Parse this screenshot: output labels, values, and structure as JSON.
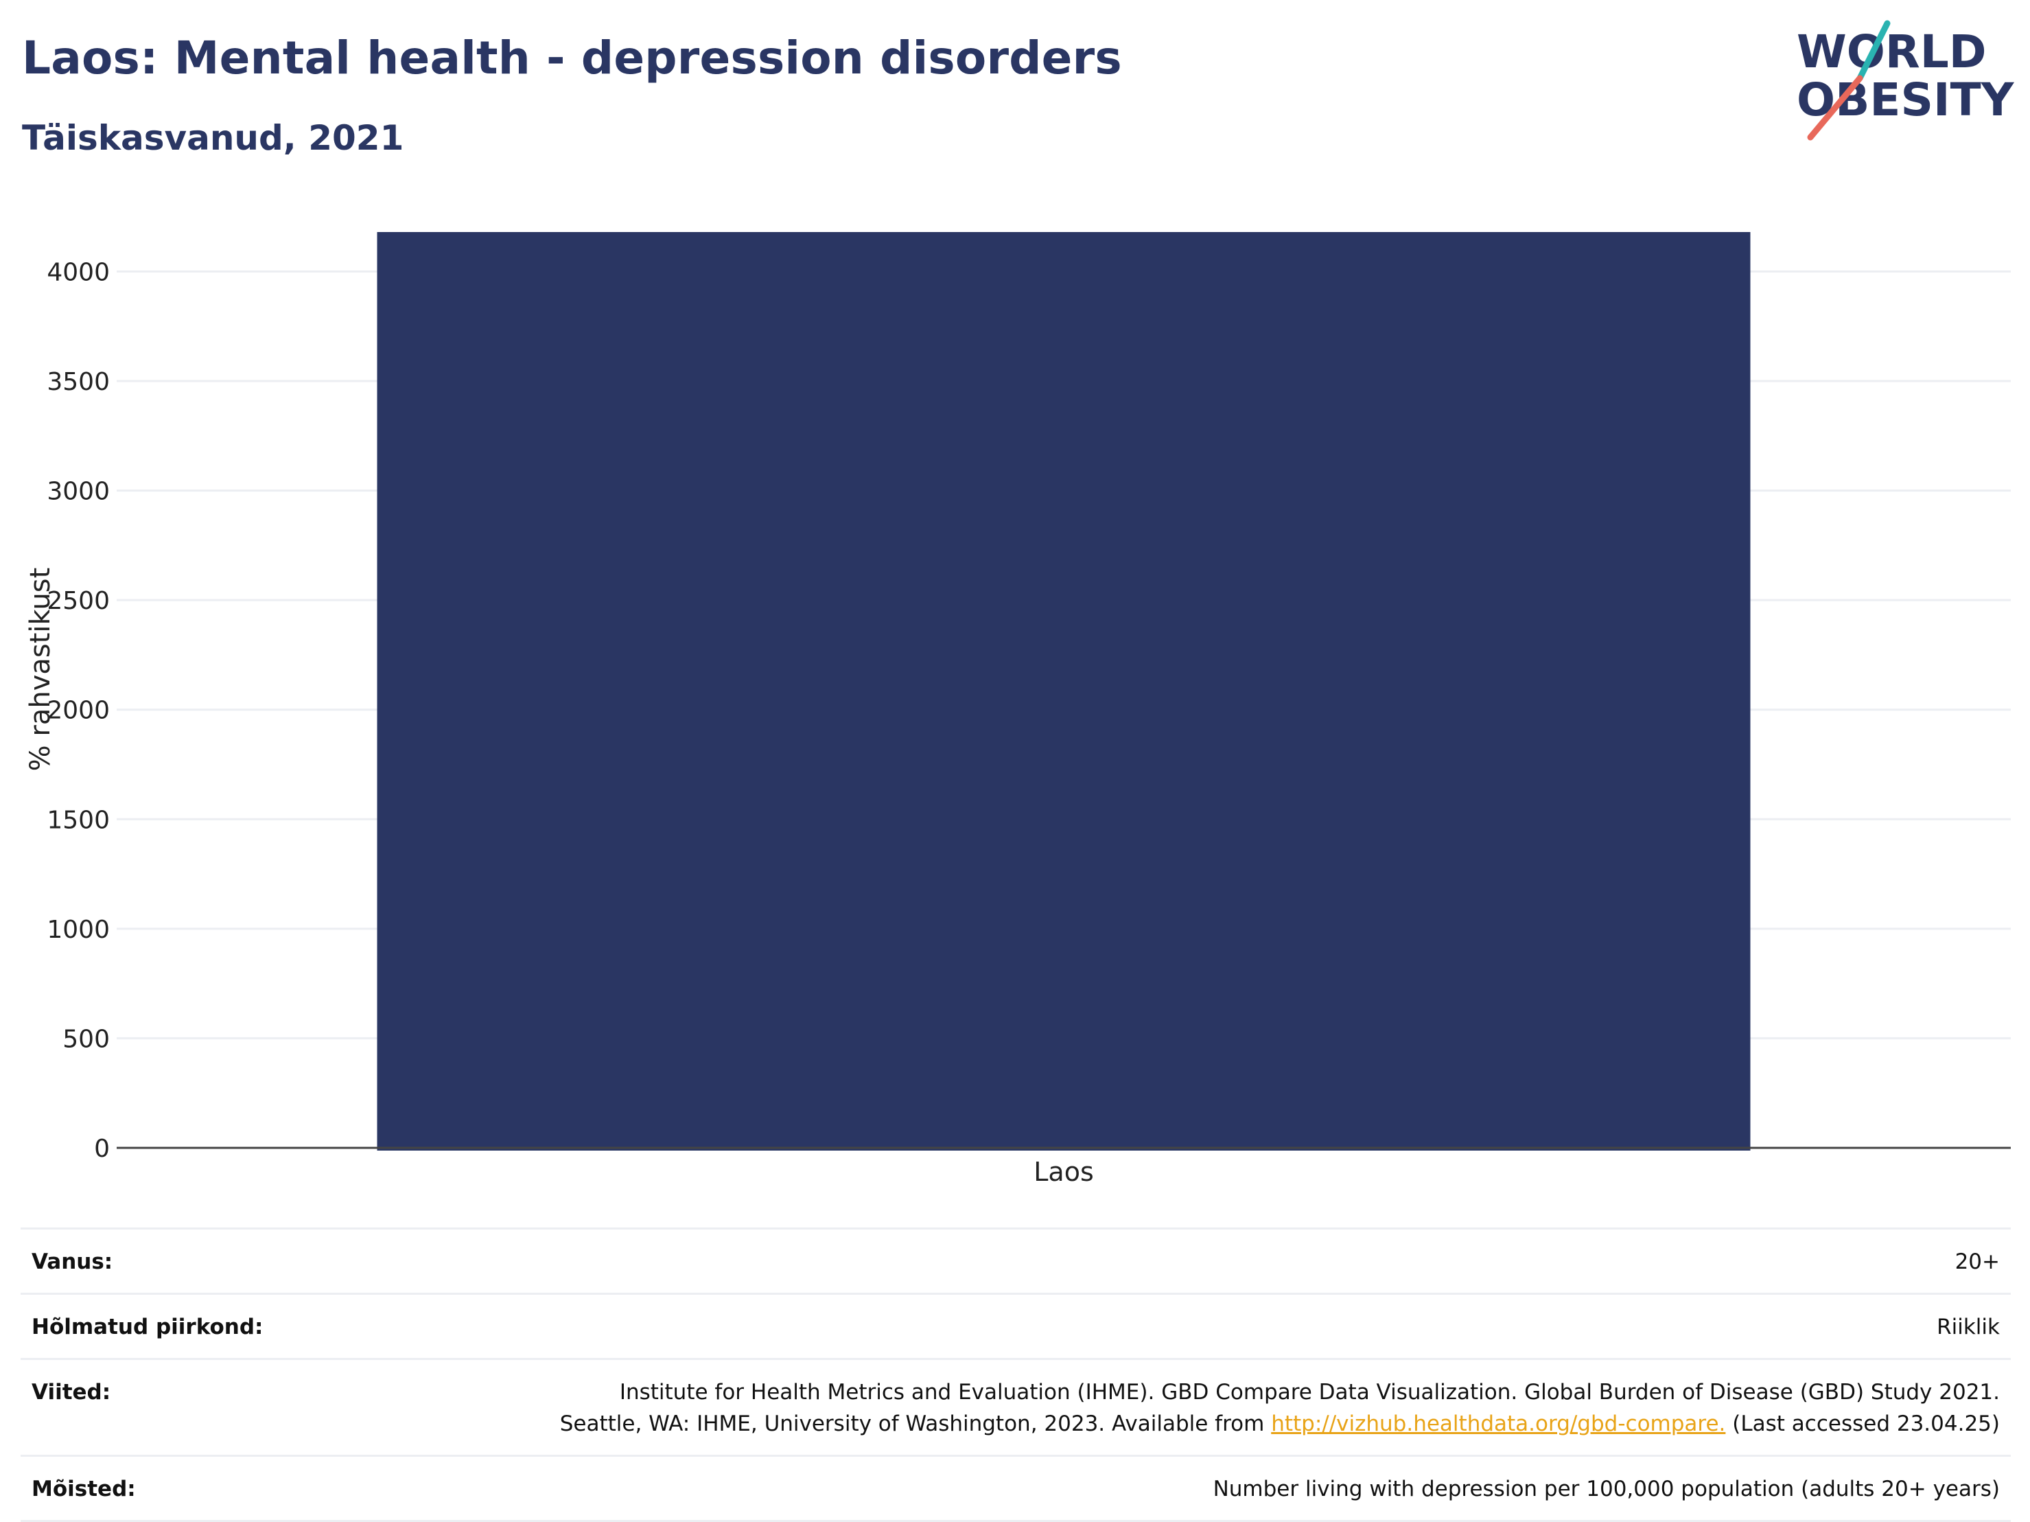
{
  "header": {
    "title": "Laos: Mental health - depression disorders",
    "subtitle": "Täiskasvanud, 2021"
  },
  "logo": {
    "line1": "WORLD",
    "line2": "OBESITY",
    "text_color": "#2a3663",
    "slash_top_color": "#2ab3b1",
    "slash_bottom_color": "#e8685a"
  },
  "chart_data": {
    "type": "bar",
    "categories": [
      "Laos"
    ],
    "values": [
      4185
    ],
    "ylabel": "% rahvastikust",
    "ylim": [
      0,
      4180
    ],
    "yticks": [
      0,
      500,
      1000,
      1500,
      2000,
      2500,
      3000,
      3500,
      4000
    ],
    "grid": true,
    "bar_color": "#2a3663",
    "grid_color": "#eceef2",
    "axis_color": "#444444"
  },
  "info": {
    "rows": [
      {
        "key": "Vanus:",
        "value": "20+"
      },
      {
        "key": "Hõlmatud piirkond:",
        "value": "Riiklik"
      },
      {
        "key": "Viited:",
        "value_line1": "Institute for Health Metrics and Evaluation (IHME). GBD Compare Data Visualization. Global Burden of Disease (GBD) Study 2021.",
        "value_line2_pre": "Seattle, WA: IHME, University of Washington, 2023. Available from ",
        "value_link": "http://vizhub.healthdata.org/gbd-compare.",
        "value_line2_post": " (Last accessed 23.04.25)"
      },
      {
        "key": "Mõisted:",
        "value": "Number living with depression per 100,000 population (adults 20+ years)"
      }
    ],
    "link_color": "#e8a317"
  }
}
